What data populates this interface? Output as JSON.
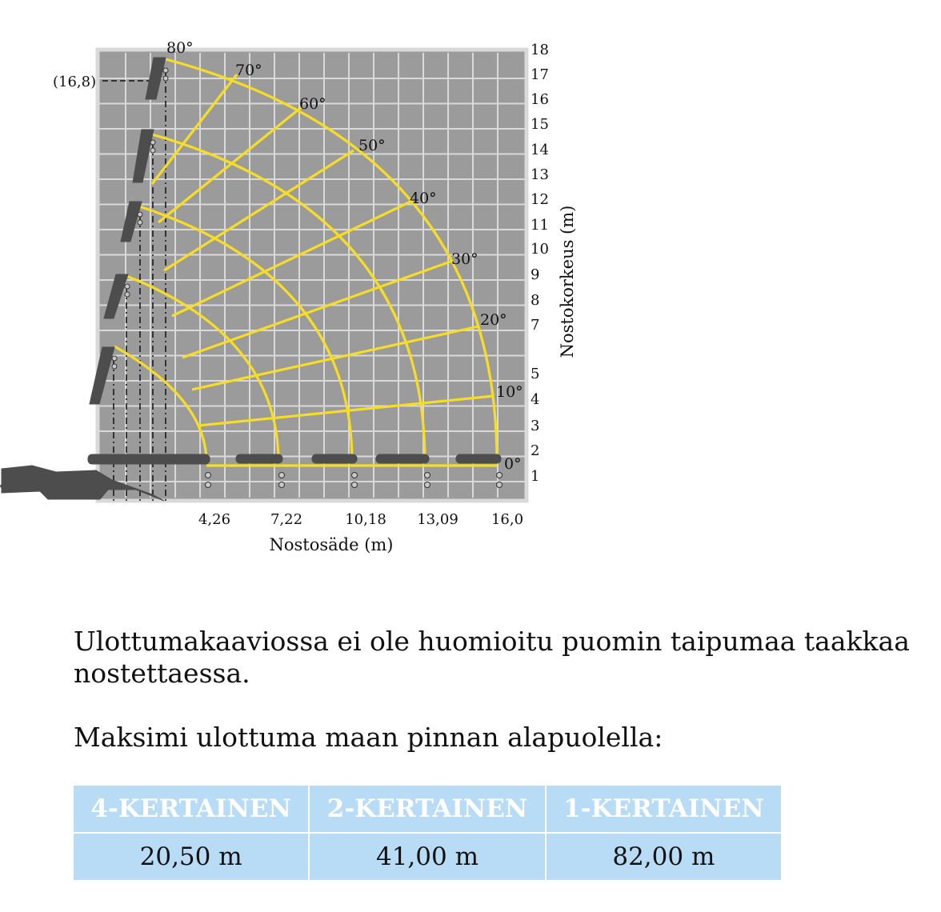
{
  "diagram": {
    "top_angle_label": "80°",
    "marker_label": "(16,8)",
    "angle_labels": [
      "0°",
      "10°",
      "20°",
      "30°",
      "40°",
      "50°",
      "60°",
      "70°"
    ],
    "y_ticks": [
      "1",
      "2",
      "3",
      "4",
      "5",
      "7",
      "8",
      "9",
      "10",
      "11",
      "12",
      "13",
      "14",
      "15",
      "16",
      "17",
      "18"
    ],
    "x_ticks": [
      "4,26",
      "7,22",
      "10,18",
      "13,09",
      "16,0"
    ],
    "x_axis_label": "Nostosäde (m)",
    "y_axis_label": "Nostokorkeus (m)",
    "colors": {
      "grid_bg": "#9b9b9b",
      "arc": "#f7dd25",
      "crane": "#4d4d4d"
    }
  },
  "notes": {
    "line1": "Ulottumakaaviossa ei ole huomioitu puomin taipumaa taakkaa nostettaessa.",
    "line2": "Maksimi ulottuma maan pinnan alapuolella:"
  },
  "table": {
    "headers": [
      "4-KERTAINEN",
      "2-KERTAINEN",
      "1-KERTAINEN"
    ],
    "values": [
      "20,50 m",
      "41,00 m",
      "82,00 m"
    ]
  }
}
